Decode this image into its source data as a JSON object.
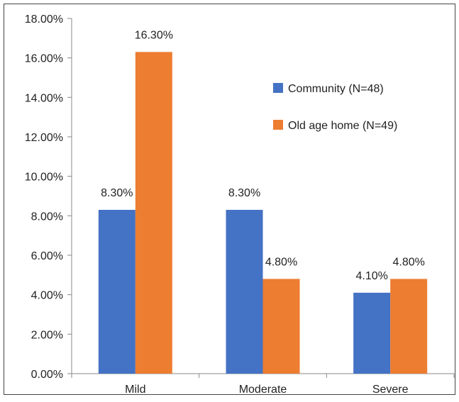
{
  "chart_data": {
    "type": "bar",
    "title": "",
    "xlabel": "",
    "ylabel": "",
    "categories": [
      "Mild",
      "Moderate",
      "Severe"
    ],
    "series": [
      {
        "name": "Community (N=48)",
        "values": [
          8.3,
          8.3,
          4.1
        ],
        "labels": [
          "8.30%",
          "8.30%",
          "4.10%"
        ],
        "color": "#4472C4"
      },
      {
        "name": "Old age home (N=49)",
        "values": [
          16.3,
          4.8,
          4.8
        ],
        "labels": [
          "16.30%",
          "4.80%",
          "4.80%"
        ],
        "color": "#ED7D31"
      }
    ],
    "ylim": [
      0,
      18
    ],
    "y_ticks": [
      "0.00%",
      "2.00%",
      "4.00%",
      "6.00%",
      "8.00%",
      "10.00%",
      "12.00%",
      "14.00%",
      "16.00%",
      "18.00%"
    ],
    "y_tick_values": [
      0,
      2,
      4,
      6,
      8,
      10,
      12,
      14,
      16,
      18
    ],
    "grid": false,
    "legend_position": "top-right"
  }
}
